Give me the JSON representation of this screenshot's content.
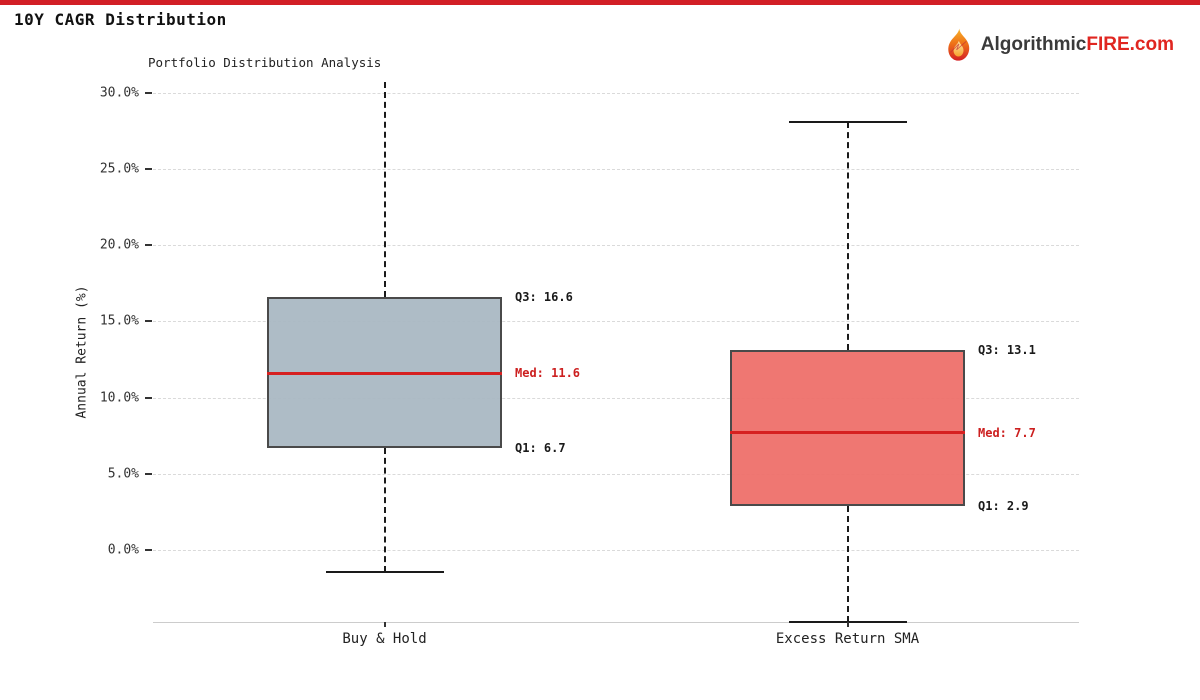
{
  "page": {
    "header_title": "10Y CAGR Distribution",
    "accent_color": "#d21f26",
    "logo": {
      "text_dark": "Algorithmic",
      "text_red": "FIRE",
      "text_suffix": ".com",
      "icon": "flame-icon"
    }
  },
  "chart_data": {
    "type": "box",
    "title": "Portfolio Distribution Analysis",
    "ylabel": "Annual Return (%)",
    "xlabel": "",
    "grid": "horizontal dashed",
    "legend": "none",
    "ylim": [
      -4.7,
      30.7
    ],
    "yticks": [
      {
        "value": 30,
        "label": "30.0%"
      },
      {
        "value": 25,
        "label": "25.0%"
      },
      {
        "value": 20,
        "label": "20.0%"
      },
      {
        "value": 15,
        "label": "15.0%"
      },
      {
        "value": 10,
        "label": "10.0%"
      },
      {
        "value": 5,
        "label": "5.0%"
      },
      {
        "value": 0,
        "label": "0.0%"
      }
    ],
    "categories": [
      "Buy & Hold",
      "Excess Return SMA"
    ],
    "median_color": "#d62020",
    "annotation_color": "#1a1a1a",
    "median_label_color": "#cc1f1f",
    "boxes": [
      {
        "category": "Buy & Hold",
        "q1": 6.7,
        "median": 11.6,
        "q3": 16.6,
        "whisker_low": -1.4,
        "whisker_high": 30.7,
        "whisker_high_capped": false,
        "whisker_low_capped": true,
        "fill": "#a9b8c2",
        "annotations": {
          "q3": "Q3: 16.6",
          "med": "Med: 11.6",
          "q1": "Q1: 6.7"
        }
      },
      {
        "category": "Excess Return SMA",
        "q1": 2.9,
        "median": 7.7,
        "q3": 13.1,
        "whisker_low": -4.7,
        "whisker_high": 28.1,
        "whisker_high_capped": true,
        "whisker_low_capped": true,
        "fill": "#ee6f69",
        "annotations": {
          "q3": "Q3: 13.1",
          "med": "Med: 7.7",
          "q1": "Q1: 2.9"
        }
      }
    ]
  }
}
